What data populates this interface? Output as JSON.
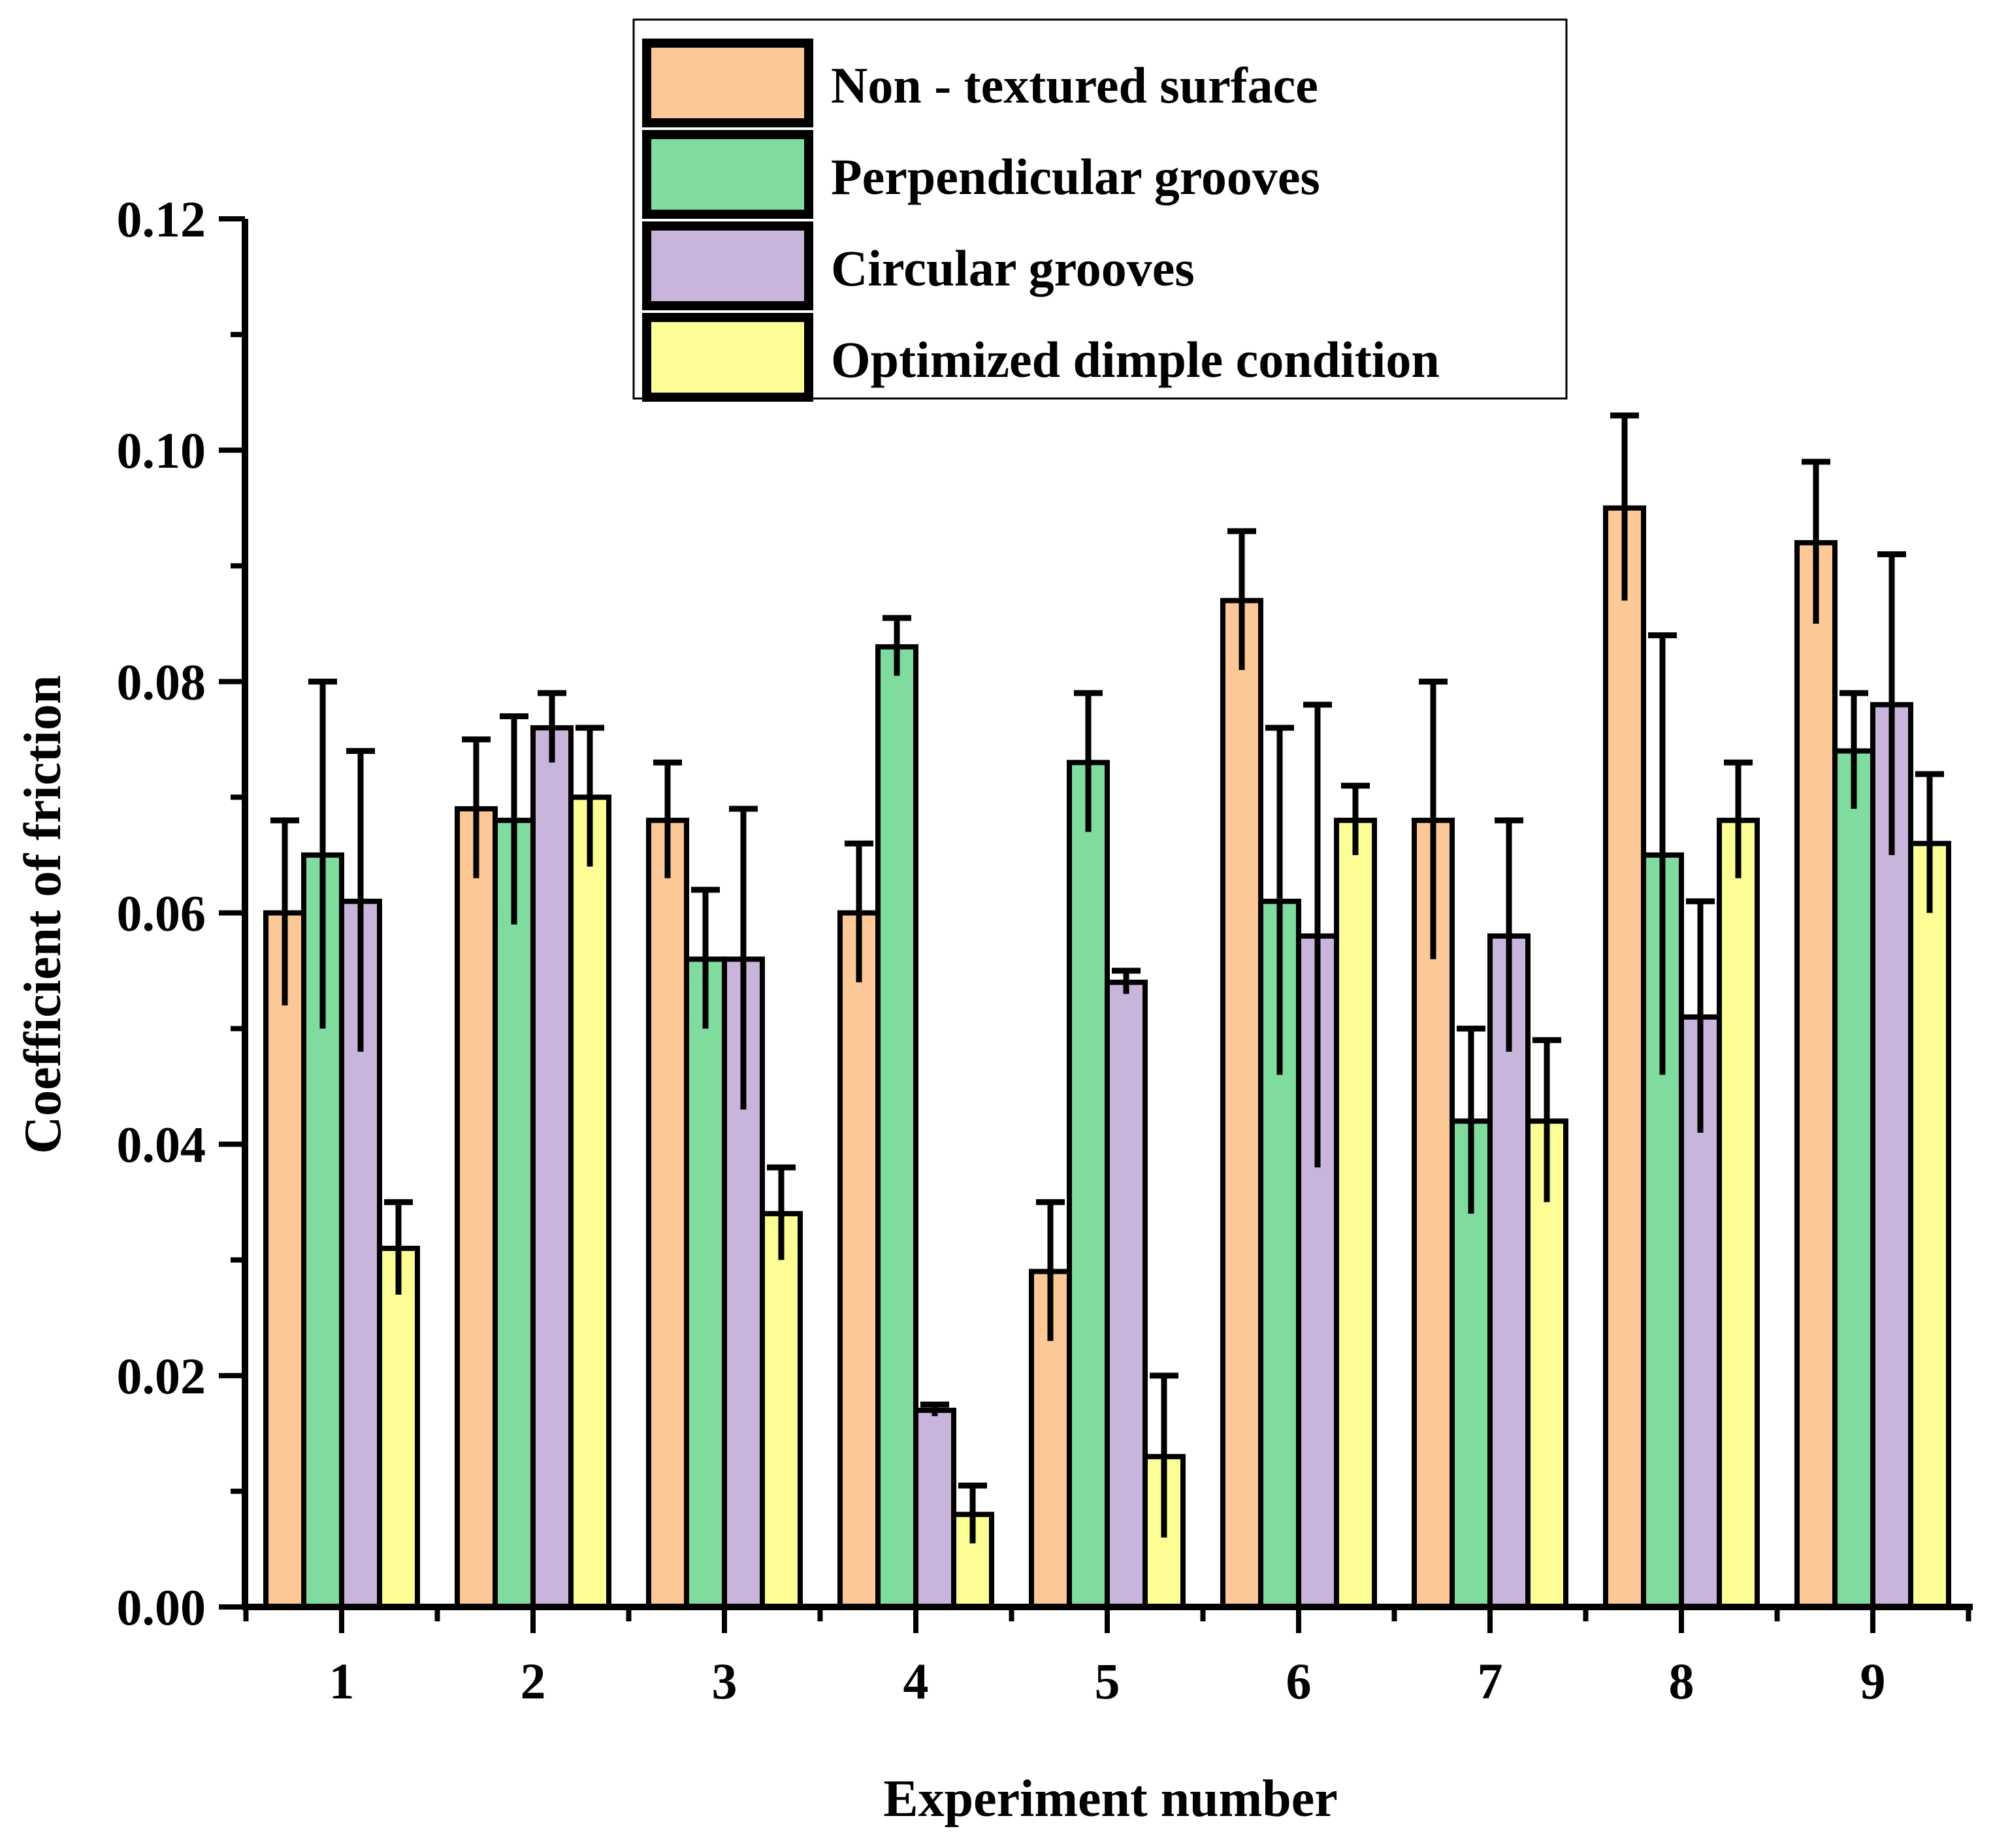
{
  "chart_data": {
    "type": "bar",
    "title": "",
    "xlabel": "Experiment number",
    "ylabel": "Coefficient of friction",
    "categories": [
      "1",
      "2",
      "3",
      "4",
      "5",
      "6",
      "7",
      "8",
      "9"
    ],
    "ylim": [
      0,
      0.12
    ],
    "yticks": [
      "0.00",
      "0.02",
      "0.04",
      "0.06",
      "0.08",
      "0.10",
      "0.12"
    ],
    "legend_position": "top-center",
    "series": [
      {
        "name": "Non - textured surface",
        "color": "#FDC897",
        "values": [
          0.06,
          0.069,
          0.068,
          0.06,
          0.029,
          0.087,
          0.068,
          0.095,
          0.092
        ],
        "errors": [
          0.008,
          0.006,
          0.005,
          0.006,
          0.006,
          0.006,
          0.012,
          0.008,
          0.007
        ]
      },
      {
        "name": "Perpendicular grooves",
        "color": "#7FDB9E",
        "values": [
          0.065,
          0.068,
          0.056,
          0.083,
          0.073,
          0.061,
          0.042,
          0.065,
          0.074
        ],
        "errors": [
          0.015,
          0.009,
          0.006,
          0.0025,
          0.006,
          0.015,
          0.008,
          0.019,
          0.005
        ]
      },
      {
        "name": "Circular grooves",
        "color": "#C9B4DB",
        "values": [
          0.061,
          0.076,
          0.056,
          0.017,
          0.054,
          0.058,
          0.058,
          0.051,
          0.078
        ],
        "errors": [
          0.013,
          0.003,
          0.013,
          0.0005,
          0.001,
          0.02,
          0.01,
          0.01,
          0.013
        ]
      },
      {
        "name": "Optimized dimple condition",
        "color": "#FDFD96",
        "values": [
          0.031,
          0.07,
          0.034,
          0.008,
          0.013,
          0.068,
          0.042,
          0.068,
          0.066
        ],
        "errors": [
          0.004,
          0.006,
          0.004,
          0.0025,
          0.007,
          0.003,
          0.007,
          0.005,
          0.006
        ]
      }
    ]
  }
}
